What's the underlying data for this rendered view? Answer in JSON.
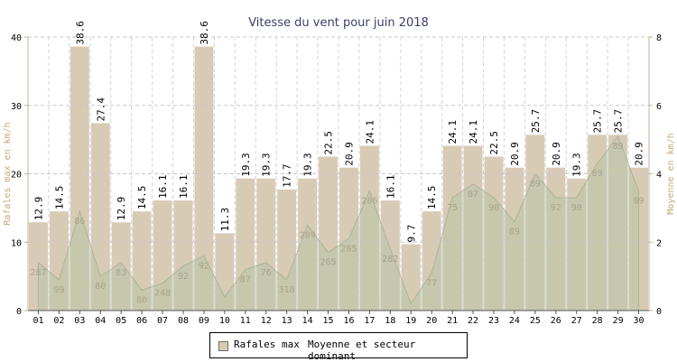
{
  "chart_data": {
    "type": "bar",
    "title": "Vitesse du vent pour juin 2018",
    "ylabel_left": "Rafales max en km/h",
    "ylabel_right": "Moyenne en km/h",
    "ylim_left": [
      0,
      40
    ],
    "ylim_right": [
      0,
      8
    ],
    "yticks_left": [
      "0",
      "10",
      "20",
      "30",
      "40"
    ],
    "yticks_right": [
      "0",
      "2",
      "4",
      "6",
      "8"
    ],
    "grid": true,
    "legend_position": "bottom",
    "categories": [
      "01",
      "02",
      "03",
      "04",
      "05",
      "06",
      "07",
      "08",
      "09",
      "10",
      "11",
      "12",
      "13",
      "14",
      "15",
      "16",
      "17",
      "18",
      "19",
      "20",
      "21",
      "22",
      "23",
      "24",
      "25",
      "26",
      "27",
      "28",
      "29",
      "30"
    ],
    "series": [
      {
        "name": "Rafales max",
        "type": "bar",
        "axis": "left",
        "color": "#d8cbb6",
        "values": [
          12.9,
          14.5,
          38.6,
          27.4,
          12.9,
          14.5,
          16.1,
          16.1,
          38.6,
          11.3,
          19.3,
          19.3,
          17.7,
          19.3,
          22.5,
          20.9,
          24.1,
          16.1,
          9.7,
          14.5,
          24.1,
          24.1,
          22.5,
          20.9,
          25.7,
          20.9,
          19.3,
          25.7,
          25.7,
          20.9
        ],
        "labels": [
          "12.9",
          "14.5",
          "38.6",
          "27.4",
          "12.9",
          "14.5",
          "16.1",
          "16.1",
          "38.6",
          "11.3",
          "19.3",
          "19.3",
          "17.7",
          "19.3",
          "22.5",
          "20.9",
          "24.1",
          "16.1",
          "9.7",
          "14.5",
          "24.1",
          "24.1",
          "22.5",
          "20.9",
          "25.7",
          "20.9",
          "19.3",
          "25.7",
          "25.7",
          "20.9"
        ]
      },
      {
        "name": "Moyenne et secteur dominant",
        "type": "area",
        "axis": "right",
        "color": "#b9c4a6",
        "values": [
          1.4,
          0.9,
          2.9,
          1.0,
          1.4,
          0.6,
          0.8,
          1.3,
          1.6,
          0.4,
          1.2,
          1.4,
          0.9,
          2.5,
          1.7,
          2.1,
          3.5,
          1.8,
          0.2,
          1.1,
          3.3,
          3.7,
          3.3,
          2.6,
          4.0,
          3.3,
          3.3,
          4.3,
          5.1,
          3.5
        ],
        "sector_labels": [
          "287",
          "99",
          "86",
          "80",
          "83",
          "80",
          "248",
          "92",
          "92",
          "",
          "87",
          "76",
          "318",
          "289",
          "265",
          "285",
          "286",
          "282",
          "",
          "77",
          "75",
          "87",
          "90",
          "89",
          "89",
          "92",
          "90",
          "89",
          "89",
          "89"
        ]
      }
    ]
  },
  "legend": {
    "item1": "Rafales max",
    "item2": "Moyenne et secteur dominant"
  }
}
